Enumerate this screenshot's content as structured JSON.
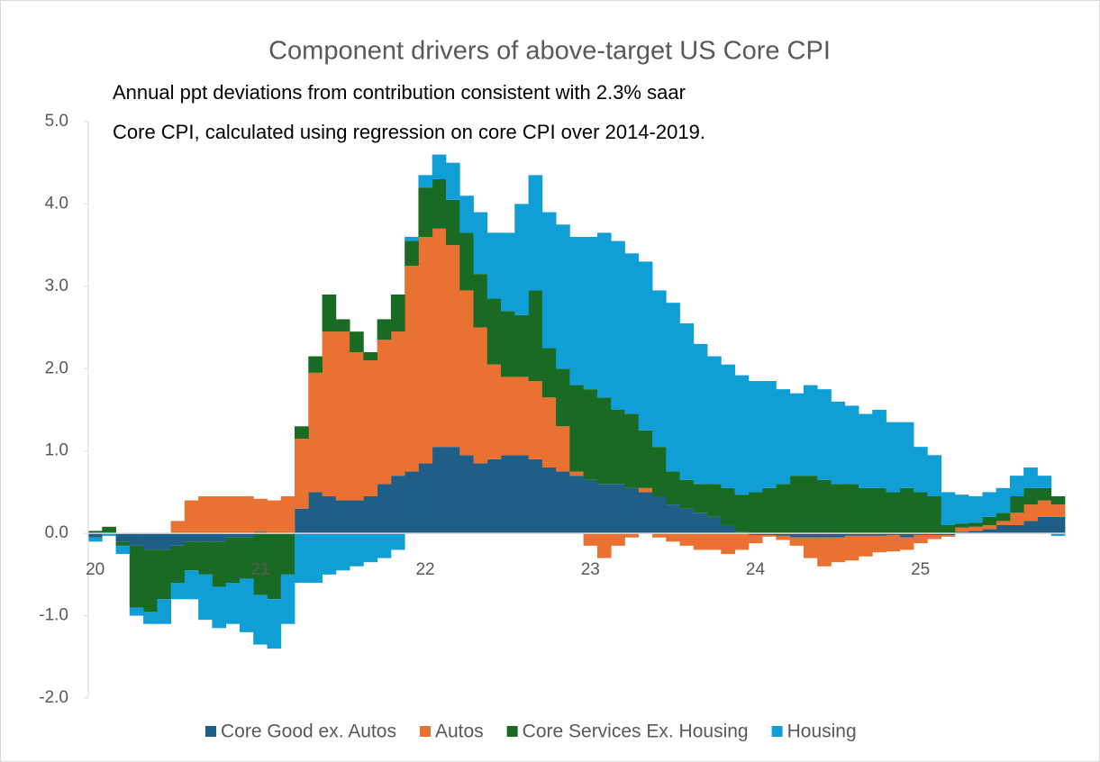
{
  "chart_data": {
    "type": "stacked_bar",
    "title": "Component drivers of above-target US Core CPI",
    "subtitle": [
      "Annual ppt deviations from contribution consistent with 2.3% saar",
      "Core CPI,  calculated using regression on core CPI over 2014-2019."
    ],
    "categories": [
      "20",
      null,
      null,
      null,
      null,
      null,
      null,
      null,
      null,
      null,
      null,
      null,
      "21",
      null,
      null,
      null,
      null,
      null,
      null,
      null,
      null,
      null,
      null,
      null,
      "22",
      null,
      null,
      null,
      null,
      null,
      null,
      null,
      null,
      null,
      null,
      null,
      "23",
      null,
      null,
      null,
      null,
      null,
      null,
      null,
      null,
      null,
      null,
      null,
      "24",
      null,
      null,
      null,
      null,
      null,
      null,
      null,
      null,
      null,
      null,
      null,
      "25",
      null,
      null,
      null,
      null,
      null,
      null,
      null,
      null,
      null,
      null
    ],
    "series": [
      {
        "name": "Core Good ex. Autos",
        "color": "#1f5f87",
        "values": [
          -0.05,
          0,
          -0.1,
          -0.15,
          -0.2,
          -0.2,
          -0.15,
          -0.1,
          -0.1,
          -0.1,
          -0.05,
          -0.05,
          0.02,
          0,
          0,
          0.3,
          0.5,
          0.45,
          0.4,
          0.4,
          0.45,
          0.6,
          0.7,
          0.75,
          0.85,
          1.05,
          1.05,
          0.95,
          0.85,
          0.9,
          0.95,
          0.95,
          0.9,
          0.8,
          0.75,
          0.7,
          0.65,
          0.6,
          0.6,
          0.55,
          0.5,
          0.45,
          0.35,
          0.3,
          0.25,
          0.2,
          0.1,
          0.02,
          -0.02,
          -0.02,
          -0.03,
          -0.05,
          -0.05,
          -0.05,
          -0.05,
          -0.03,
          -0.03,
          -0.03,
          -0.02,
          -0.05,
          -0.02,
          -0.02,
          -0.02,
          0.02,
          0.03,
          0.05,
          0.1,
          0.1,
          0.15,
          0.2,
          0.2
        ]
      },
      {
        "name": "Autos",
        "color": "#e97132",
        "values": [
          0,
          0,
          0,
          0,
          0,
          0,
          0.15,
          0.4,
          0.45,
          0.45,
          0.45,
          0.45,
          0.4,
          0.4,
          0.45,
          0.85,
          1.45,
          2.0,
          2.05,
          1.8,
          1.65,
          1.75,
          1.75,
          2.5,
          2.75,
          2.65,
          2.45,
          2.0,
          1.65,
          1.15,
          0.95,
          0.95,
          0.95,
          0.85,
          0.55,
          0.05,
          -0.15,
          -0.3,
          -0.15,
          -0.05,
          0.05,
          -0.05,
          -0.1,
          -0.15,
          -0.2,
          -0.2,
          -0.25,
          -0.2,
          -0.1,
          -0.02,
          -0.05,
          -0.1,
          -0.25,
          -0.35,
          -0.3,
          -0.3,
          -0.25,
          -0.2,
          -0.2,
          -0.15,
          -0.1,
          -0.05,
          -0.02,
          0.05,
          0.05,
          0.05,
          0.05,
          0.15,
          0.2,
          0.2,
          0.15
        ]
      },
      {
        "name": "Core Services Ex. Housing",
        "color": "#196b24",
        "values": [
          0.03,
          0.08,
          -0.05,
          -0.75,
          -0.75,
          -0.6,
          -0.45,
          -0.35,
          -0.4,
          -0.55,
          -0.55,
          -0.5,
          -0.75,
          -0.8,
          -0.5,
          0.15,
          0.2,
          0.45,
          0.15,
          0.25,
          0.1,
          0.25,
          0.45,
          0.3,
          0.6,
          0.6,
          0.55,
          0.7,
          0.65,
          0.8,
          0.8,
          0.75,
          1.1,
          0.6,
          0.7,
          1.05,
          1.1,
          1.05,
          0.9,
          0.9,
          0.7,
          0.6,
          0.4,
          0.35,
          0.35,
          0.4,
          0.45,
          0.45,
          0.5,
          0.55,
          0.6,
          0.7,
          0.7,
          0.65,
          0.6,
          0.6,
          0.55,
          0.55,
          0.5,
          0.55,
          0.5,
          0.45,
          0.1,
          0.05,
          0.05,
          0.1,
          0.1,
          0.2,
          0.2,
          0.15,
          0.1
        ]
      },
      {
        "name": "Housing",
        "color": "#0f9ed5",
        "values": [
          -0.05,
          -0.03,
          -0.1,
          -0.1,
          -0.15,
          -0.3,
          -0.2,
          -0.35,
          -0.55,
          -0.5,
          -0.5,
          -0.65,
          -0.6,
          -0.6,
          -0.6,
          -0.6,
          -0.6,
          -0.5,
          -0.45,
          -0.4,
          -0.35,
          -0.3,
          -0.2,
          0.05,
          0.15,
          0.3,
          0.45,
          0.45,
          0.75,
          0.8,
          0.95,
          1.35,
          1.4,
          1.65,
          1.75,
          1.8,
          1.85,
          2.0,
          2.05,
          1.95,
          2.05,
          1.9,
          2.05,
          1.9,
          1.7,
          1.55,
          1.5,
          1.45,
          1.35,
          1.3,
          1.15,
          1.0,
          1.1,
          1.1,
          1.0,
          0.95,
          0.9,
          0.95,
          0.85,
          0.8,
          0.55,
          0.5,
          0.4,
          0.35,
          0.32,
          0.3,
          0.3,
          0.25,
          0.25,
          0.15,
          -0.03
        ]
      }
    ],
    "ylim": [
      -2,
      5
    ],
    "yticks": [
      {
        "value": -2,
        "label": "-2.0"
      },
      {
        "value": -1,
        "label": "-1.0"
      },
      {
        "value": 0,
        "label": "0.0"
      },
      {
        "value": 1,
        "label": "1.0"
      },
      {
        "value": 2,
        "label": "2.0"
      },
      {
        "value": 3,
        "label": "3.0"
      },
      {
        "value": 4,
        "label": "4.0"
      },
      {
        "value": 5,
        "label": "5.0"
      }
    ]
  }
}
